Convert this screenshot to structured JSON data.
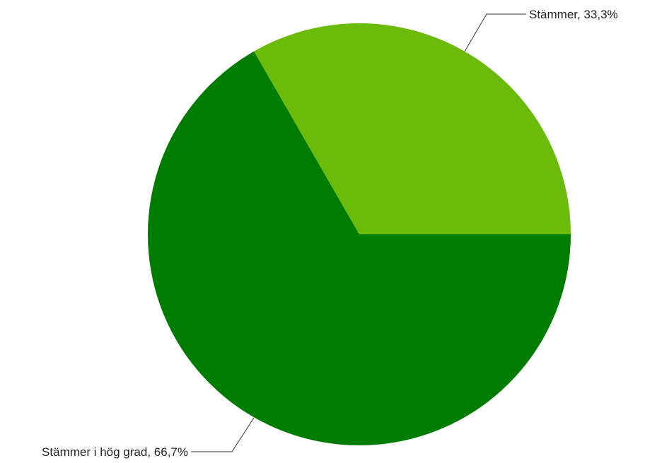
{
  "chart_data": {
    "type": "pie",
    "slices": [
      {
        "label": "Stämmer",
        "value": 33.3,
        "label_text": "Stämmer, 33,3%",
        "color": "#6bbb0b"
      },
      {
        "label": "Stämmer i hög grad",
        "value": 66.7,
        "label_text": "Stämmer i hög grad, 66,7%",
        "color": "#007d00"
      }
    ]
  }
}
